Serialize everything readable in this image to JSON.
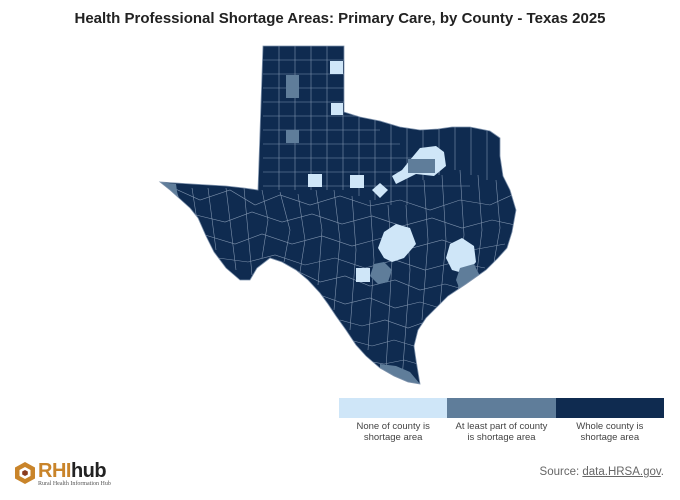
{
  "title": "Health Professional Shortage Areas: Primary Care, by County - Texas 2025",
  "colors": {
    "none": "#cfe6f8",
    "partial": "#5f7d9a",
    "whole": "#0f2b50",
    "county_border": "#7f93ad"
  },
  "legend": {
    "items": [
      {
        "label": "None of county is shortage area",
        "color": "#cfe6f8"
      },
      {
        "label": "At least part of county is shortage area",
        "color": "#5f7d9a"
      },
      {
        "label": "Whole county is shortage area",
        "color": "#0f2b50"
      }
    ]
  },
  "source": {
    "prefix": "Source: ",
    "link_text": "data.HRSA.gov",
    "suffix": "."
  },
  "logo": {
    "rhi": "RHI",
    "hub": "hub",
    "tagline": "Rural Health Information Hub"
  }
}
